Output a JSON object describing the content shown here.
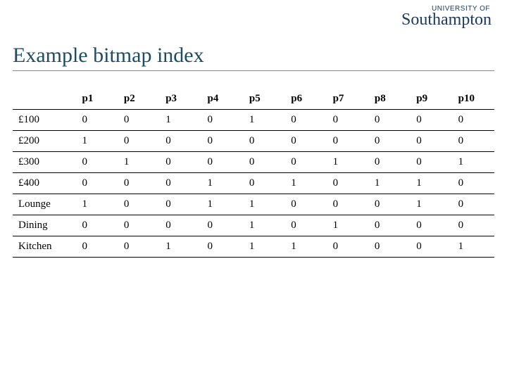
{
  "logo": {
    "small_text": "UNIVERSITY OF",
    "big_text": "Southampton"
  },
  "title": "Example bitmap index",
  "table": {
    "type": "table",
    "columns": [
      "",
      "p1",
      "p2",
      "p3",
      "p4",
      "p5",
      "p6",
      "p7",
      "p8",
      "p9",
      "p10"
    ],
    "rows": [
      [
        "£100",
        "0",
        "0",
        "1",
        "0",
        "1",
        "0",
        "0",
        "0",
        "0",
        "0"
      ],
      [
        "£200",
        "1",
        "0",
        "0",
        "0",
        "0",
        "0",
        "0",
        "0",
        "0",
        "0"
      ],
      [
        "£300",
        "0",
        "1",
        "0",
        "0",
        "0",
        "0",
        "1",
        "0",
        "0",
        "1"
      ],
      [
        "£400",
        "0",
        "0",
        "0",
        "1",
        "0",
        "1",
        "0",
        "1",
        "1",
        "0"
      ],
      [
        "Lounge",
        "1",
        "0",
        "0",
        "1",
        "1",
        "0",
        "0",
        "0",
        "1",
        "0"
      ],
      [
        "Dining",
        "0",
        "0",
        "0",
        "0",
        "1",
        "0",
        "1",
        "0",
        "0",
        "0"
      ],
      [
        "Kitchen",
        "0",
        "0",
        "1",
        "0",
        "1",
        "1",
        "0",
        "0",
        "0",
        "1"
      ]
    ],
    "header_fontsize": 15,
    "cell_fontsize": 15,
    "border_color": "#000000",
    "background_color": "#ffffff",
    "text_color": "#000000"
  },
  "colors": {
    "title": "#1c4b66",
    "logo": "#1c3a5f",
    "rule": "#888888"
  }
}
